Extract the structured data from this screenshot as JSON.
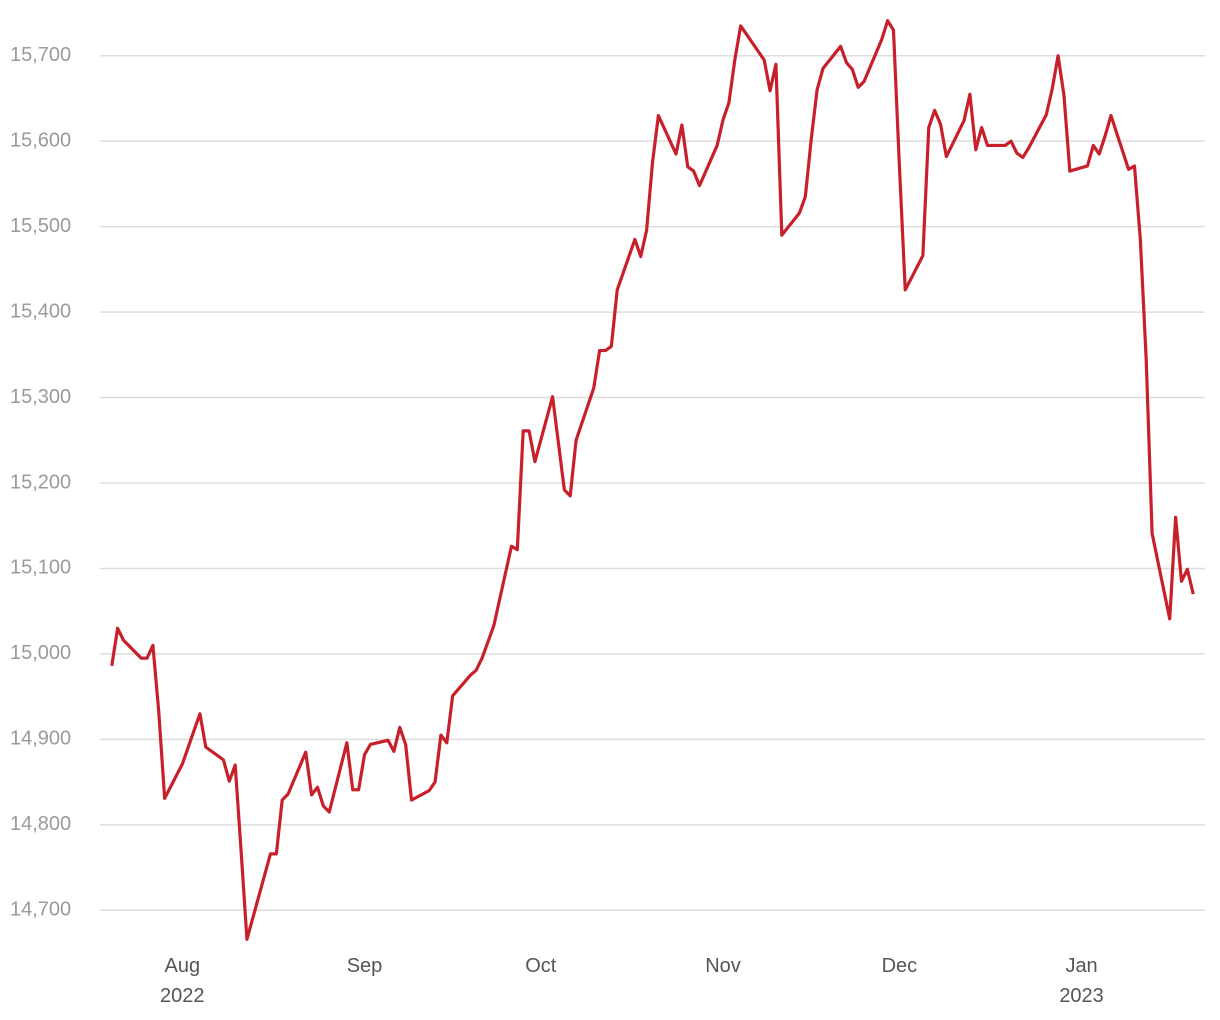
{
  "chart_data": {
    "type": "line",
    "x": [
      "2022-07-20",
      "2022-07-21",
      "2022-07-22",
      "2022-07-25",
      "2022-07-26",
      "2022-07-27",
      "2022-07-28",
      "2022-07-29",
      "2022-08-01",
      "2022-08-04",
      "2022-08-05",
      "2022-08-08",
      "2022-08-09",
      "2022-08-10",
      "2022-08-11",
      "2022-08-12",
      "2022-08-16",
      "2022-08-17",
      "2022-08-18",
      "2022-08-19",
      "2022-08-22",
      "2022-08-23",
      "2022-08-24",
      "2022-08-25",
      "2022-08-26",
      "2022-08-29",
      "2022-08-30",
      "2022-08-31",
      "2022-09-01",
      "2022-09-02",
      "2022-09-05",
      "2022-09-06",
      "2022-09-07",
      "2022-09-08",
      "2022-09-09",
      "2022-09-12",
      "2022-09-13",
      "2022-09-14",
      "2022-09-15",
      "2022-09-16",
      "2022-09-19",
      "2022-09-20",
      "2022-09-21",
      "2022-09-23",
      "2022-09-26",
      "2022-09-27",
      "2022-09-28",
      "2022-09-29",
      "2022-09-30",
      "2022-10-03",
      "2022-10-05",
      "2022-10-06",
      "2022-10-07",
      "2022-10-10",
      "2022-10-11",
      "2022-10-12",
      "2022-10-13",
      "2022-10-14",
      "2022-10-17",
      "2022-10-18",
      "2022-10-19",
      "2022-10-20",
      "2022-10-21",
      "2022-10-24",
      "2022-10-25",
      "2022-10-26",
      "2022-10-27",
      "2022-10-28",
      "2022-10-31",
      "2022-11-01",
      "2022-11-02",
      "2022-11-03",
      "2022-11-04",
      "2022-11-08",
      "2022-11-09",
      "2022-11-10",
      "2022-11-11",
      "2022-11-14",
      "2022-11-15",
      "2022-11-16",
      "2022-11-17",
      "2022-11-18",
      "2022-11-21",
      "2022-11-22",
      "2022-11-23",
      "2022-11-24",
      "2022-11-25",
      "2022-11-28",
      "2022-11-29",
      "2022-11-30",
      "2022-12-01",
      "2022-12-02",
      "2022-12-05",
      "2022-12-06",
      "2022-12-07",
      "2022-12-08",
      "2022-12-09",
      "2022-12-12",
      "2022-12-13",
      "2022-12-14",
      "2022-12-15",
      "2022-12-16",
      "2022-12-19",
      "2022-12-20",
      "2022-12-21",
      "2022-12-22",
      "2022-12-23",
      "2022-12-26",
      "2022-12-27",
      "2022-12-28",
      "2022-12-29",
      "2022-12-30",
      "2023-01-02",
      "2023-01-03",
      "2023-01-04",
      "2023-01-05",
      "2023-01-06",
      "2023-01-09",
      "2023-01-10",
      "2023-01-11",
      "2023-01-12",
      "2023-01-13",
      "2023-01-16",
      "2023-01-17",
      "2023-01-18",
      "2023-01-19",
      "2023-01-20"
    ],
    "series": [
      {
        "color": "#c8202a",
        "values": [
          14986,
          15030,
          15016,
          14995,
          14995,
          15010,
          14932,
          14831,
          14871,
          14930,
          14891,
          14876,
          14851,
          14870,
          14770,
          14666,
          14766,
          14766,
          14829,
          14836,
          14885,
          14835,
          14844,
          14822,
          14815,
          14896,
          14841,
          14841,
          14882,
          14894,
          14899,
          14886,
          14914,
          14894,
          14829,
          14840,
          14850,
          14905,
          14896,
          14951,
          14975,
          14981,
          14995,
          15033,
          15126,
          15122,
          15261,
          15261,
          15225,
          15301,
          15192,
          15185,
          15250,
          15311,
          15355,
          15355,
          15360,
          15426,
          15485,
          15465,
          15496,
          15575,
          15630,
          15585,
          15619,
          15570,
          15565,
          15548,
          15595,
          15625,
          15645,
          15695,
          15735,
          15695,
          15659,
          15690,
          15490,
          15516,
          15535,
          15602,
          15660,
          15685,
          15711,
          15692,
          15684,
          15663,
          15670,
          15719,
          15741,
          15730,
          15572,
          15426,
          15466,
          15616,
          15636,
          15620,
          15582,
          15624,
          15655,
          15590,
          15616,
          15595,
          15595,
          15600,
          15586,
          15581,
          15592,
          15631,
          15661,
          15700,
          15654,
          15565,
          15571,
          15595,
          15585,
          15606,
          15630,
          15567,
          15571,
          15485,
          15344,
          15141,
          15041,
          15160,
          15085,
          15099,
          15070
        ]
      }
    ],
    "xlim": [
      "2022-07-18",
      "2023-01-22"
    ],
    "xticks": [
      {
        "value": "2022-08-01",
        "label": "Aug 2022"
      },
      {
        "value": "2022-09-01",
        "label": "Sep"
      },
      {
        "value": "2022-10-01",
        "label": "Oct"
      },
      {
        "value": "2022-11-01",
        "label": "Nov"
      },
      {
        "value": "2022-12-01",
        "label": "Dec"
      },
      {
        "value": "2023-01-01",
        "label": "Jan 2023"
      }
    ],
    "ylim": [
      14650,
      15750
    ],
    "yticks": [
      {
        "value": 14700,
        "label": "14,700"
      },
      {
        "value": 14800,
        "label": "14,800"
      },
      {
        "value": 14900,
        "label": "14,900"
      },
      {
        "value": 15000,
        "label": "15,000"
      },
      {
        "value": 15100,
        "label": "15,100"
      },
      {
        "value": 15200,
        "label": "15,200"
      },
      {
        "value": 15300,
        "label": "15,300"
      },
      {
        "value": 15400,
        "label": "15,400"
      },
      {
        "value": 15500,
        "label": "15,500"
      },
      {
        "value": 15600,
        "label": "15,600"
      },
      {
        "value": 15700,
        "label": "15,700"
      }
    ],
    "grid": true
  }
}
